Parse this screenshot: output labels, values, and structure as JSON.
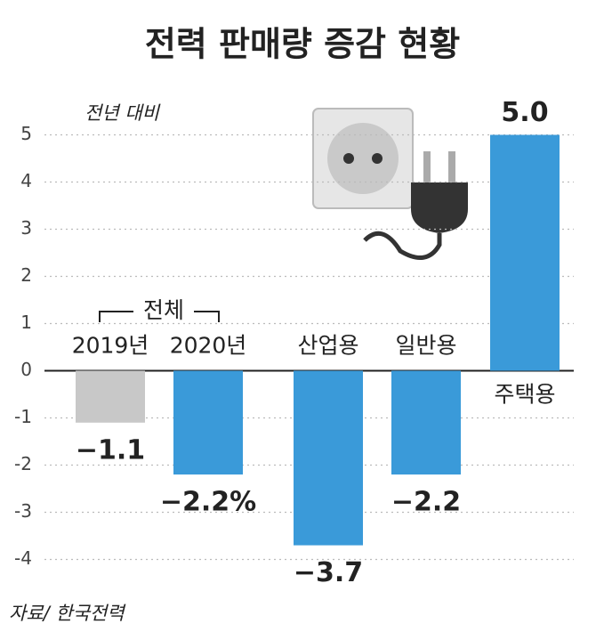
{
  "chart_data": {
    "type": "bar",
    "title": "전력 판매량 증감 현황",
    "y_axis_label": "전년 대비",
    "group_label": "전체",
    "source": "자료/ 한국전력",
    "categories": [
      "2019년",
      "2020년",
      "산업용",
      "일반용",
      "주택용"
    ],
    "values": [
      -1.1,
      -2.2,
      -3.7,
      -2.2,
      5.0
    ],
    "value_labels": [
      "−1.1",
      "−2.2%",
      "−3.7",
      "−2.2",
      "5.0"
    ],
    "colors": [
      "#c8c8c8",
      "#3a9ad9",
      "#3a9ad9",
      "#3a9ad9",
      "#3a9ad9"
    ],
    "ylim": [
      -4.5,
      5.5
    ],
    "yticks": [
      -4,
      -3,
      -2,
      -1,
      0,
      1,
      2,
      3,
      4,
      5
    ],
    "grid": true
  }
}
